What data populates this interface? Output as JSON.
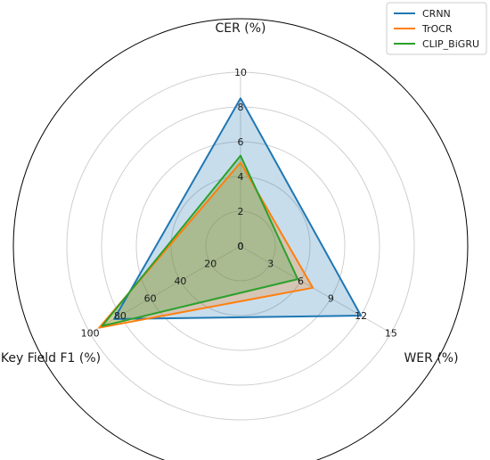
{
  "chart_data": {
    "type": "radar",
    "axes": [
      {
        "label": "CER (%)",
        "max": 10,
        "ticks": [
          0,
          2,
          4,
          6,
          8,
          10
        ]
      },
      {
        "label": "WER (%)",
        "max": 15,
        "ticks": [
          0,
          3,
          6,
          9,
          12,
          15
        ]
      },
      {
        "label": "Key Field F1 (%)",
        "max": 100,
        "ticks": [
          0,
          20,
          40,
          60,
          80,
          100
        ]
      }
    ],
    "series": [
      {
        "name": "CRNN",
        "color": "#1f77b4",
        "values": [
          8.5,
          12.0,
          84
        ]
      },
      {
        "name": "TrOCR",
        "color": "#ff7f0e",
        "values": [
          4.8,
          7.2,
          94
        ]
      },
      {
        "name": "CLIP_BiGRU",
        "color": "#2ca02c",
        "values": [
          5.2,
          5.7,
          92
        ]
      }
    ],
    "legend_position": "top-right",
    "grid": true
  }
}
